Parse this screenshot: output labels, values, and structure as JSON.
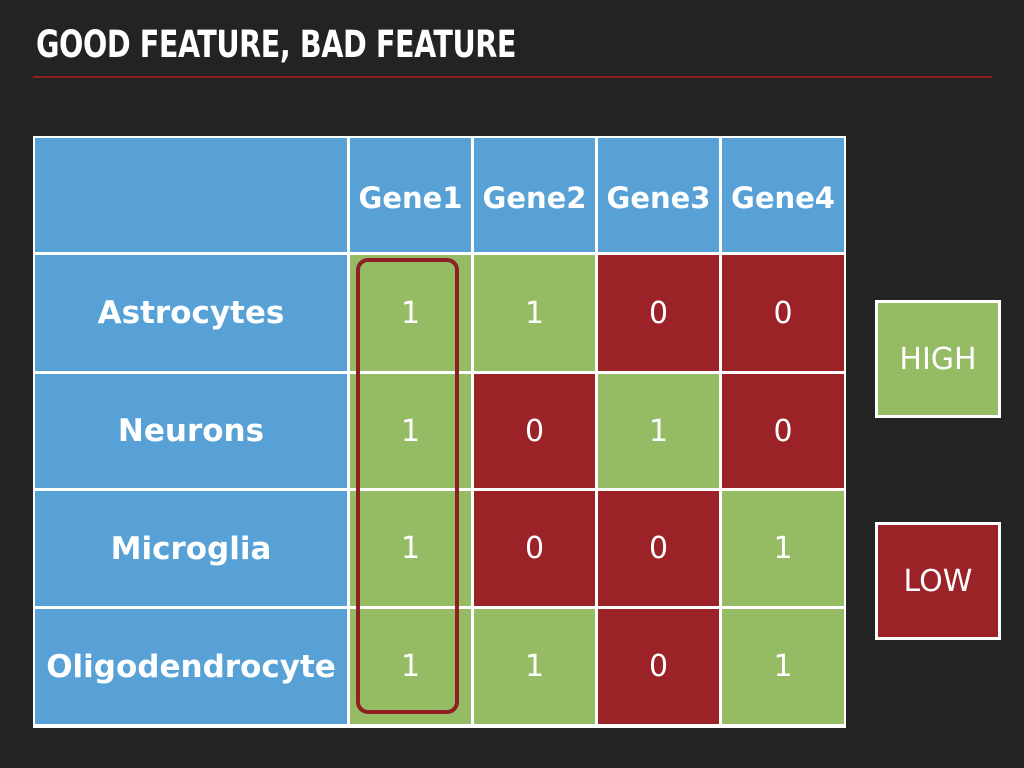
{
  "slide": {
    "title": "GOOD FEATURE, BAD FEATURE"
  },
  "table": {
    "corner": "",
    "columns": [
      "Gene1",
      "Gene2",
      "Gene3",
      "Gene4"
    ],
    "rows": [
      {
        "label": "Astrocytes",
        "values": [
          "1",
          "1",
          "0",
          "0"
        ]
      },
      {
        "label": "Neurons",
        "values": [
          "1",
          "0",
          "1",
          "0"
        ]
      },
      {
        "label": "Microglia",
        "values": [
          "1",
          "0",
          "0",
          "1"
        ]
      },
      {
        "label": "Oligodendrocyte",
        "values": [
          "1",
          "1",
          "0",
          "1"
        ]
      }
    ],
    "highlighted_column": "Gene1"
  },
  "legend": {
    "high_label": "HIGH",
    "low_label": "LOW"
  },
  "colors": {
    "background": "#232323",
    "header_blue": "#57a1d6",
    "high_green": "#95bc65",
    "low_red": "#9b2226",
    "accent_red": "#8e1f22"
  }
}
